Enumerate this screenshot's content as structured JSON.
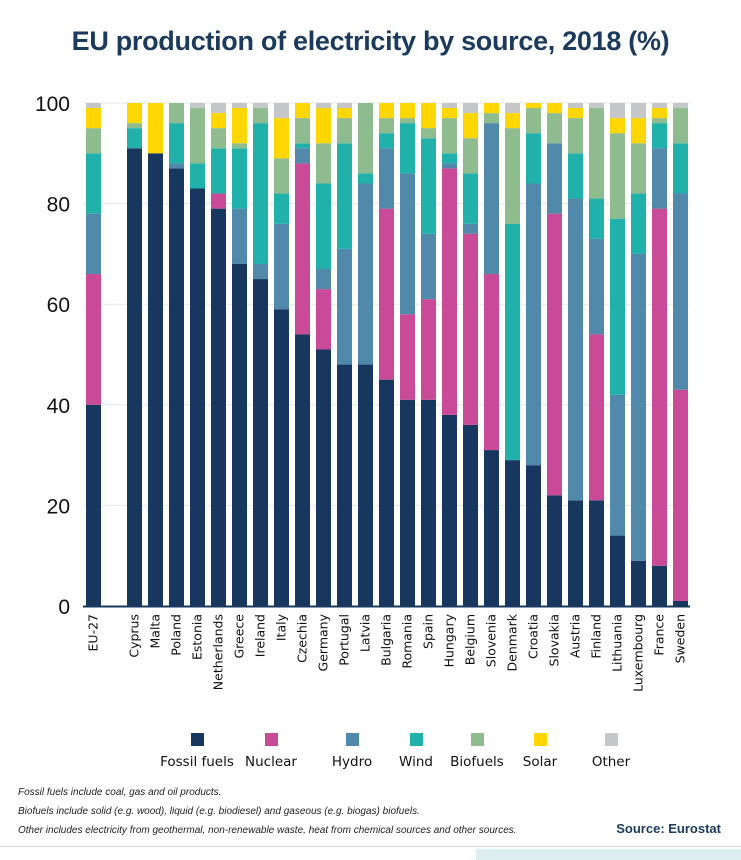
{
  "title": "EU production of electricity by source, 2018 (%)",
  "chart_data": {
    "type": "bar",
    "stacked": true,
    "title": "EU production of electricity by source, 2018 (%)",
    "xlabel": "",
    "ylabel": "",
    "ylim": [
      0,
      100
    ],
    "yticks": [
      0,
      20,
      40,
      60,
      80,
      100
    ],
    "grid": true,
    "legend_position": "bottom",
    "categories": [
      "EU-27",
      "Cyprus",
      "Malta",
      "Poland",
      "Estonia",
      "Netherlands",
      "Greece",
      "Ireland",
      "Italy",
      "Czechia",
      "Germany",
      "Portugal",
      "Latvia",
      "Bulgaria",
      "Romania",
      "Spain",
      "Hungary",
      "Belgium",
      "Slovenia",
      "Denmark",
      "Croatia",
      "Slovakia",
      "Austria",
      "Finland",
      "Lithuania",
      "Luxembourg",
      "France",
      "Sweden"
    ],
    "gap_after_index": 0,
    "series": [
      {
        "name": "Fossil fuels",
        "color": "#17375e",
        "values": [
          40,
          91,
          90,
          87,
          83,
          79,
          68,
          65,
          59,
          54,
          51,
          48,
          48,
          45,
          41,
          41,
          38,
          36,
          31,
          29,
          28,
          22,
          21,
          21,
          14,
          9,
          8,
          1
        ]
      },
      {
        "name": "Nuclear",
        "color": "#c94a96",
        "values": [
          26,
          0,
          0,
          0,
          0,
          3,
          0,
          0,
          0,
          34,
          12,
          0,
          0,
          34,
          17,
          20,
          49,
          38,
          35,
          0,
          0,
          56,
          0,
          33,
          0,
          0,
          71,
          42
        ]
      },
      {
        "name": "Hydro",
        "color": "#5189ab",
        "values": [
          12,
          0,
          0,
          1,
          0,
          0,
          11,
          3,
          17,
          3,
          4,
          23,
          36,
          12,
          28,
          13,
          1,
          2,
          30,
          0,
          56,
          14,
          60,
          19,
          28,
          61,
          12,
          39
        ]
      },
      {
        "name": "Wind",
        "color": "#20b2aa",
        "values": [
          12,
          4,
          0,
          8,
          5,
          9,
          12,
          28,
          6,
          1,
          17,
          21,
          2,
          3,
          10,
          19,
          2,
          10,
          0,
          47,
          10,
          0,
          9,
          8,
          35,
          12,
          5,
          10
        ]
      },
      {
        "name": "Biofuels",
        "color": "#8fbc8f",
        "values": [
          5,
          1,
          0,
          4,
          11,
          4,
          1,
          3,
          7,
          5,
          8,
          5,
          14,
          3,
          1,
          2,
          7,
          7,
          2,
          19,
          5,
          6,
          7,
          18,
          17,
          10,
          1,
          7
        ]
      },
      {
        "name": "Solar",
        "color": "#ffd700",
        "values": [
          4,
          4,
          10,
          0,
          0,
          3,
          7,
          0,
          8,
          3,
          7,
          2,
          0,
          3,
          3,
          5,
          2,
          5,
          2,
          3,
          1,
          2,
          2,
          0,
          3,
          5,
          2,
          0
        ]
      },
      {
        "name": "Other",
        "color": "#c4c6c8",
        "values": [
          1,
          0,
          0,
          0,
          1,
          2,
          1,
          1,
          3,
          0,
          1,
          1,
          0,
          0,
          0,
          0,
          1,
          2,
          0,
          2,
          0,
          0,
          1,
          1,
          3,
          3,
          1,
          1
        ]
      }
    ]
  },
  "notes": [
    "Fossil fuels include coal, gas and oil products.",
    "Biofuels include solid (e.g. wood), liquid (e.g. biodiesel) and gaseous (e.g. biogas) biofuels.",
    "Other includes electricity from geothermal, non-renewable waste, heat from chemical sources and other sources."
  ],
  "source": "Source: Eurostat"
}
